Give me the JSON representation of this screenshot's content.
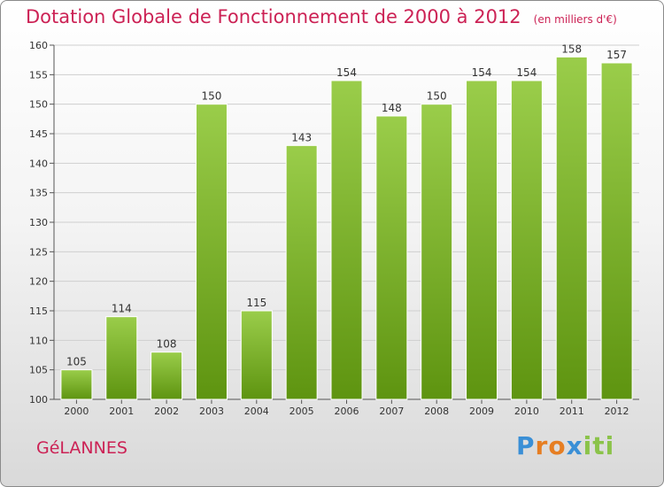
{
  "title": "Dotation Globale de Fonctionnement de 2000 à 2012",
  "subtitle": "(en milliers d'€)",
  "commune": "GéLANNES",
  "logo": {
    "letters": [
      "P",
      "r",
      "o",
      "x",
      "i",
      "t",
      "i"
    ],
    "colors": [
      "#3a8fd6",
      "#e67e22",
      "#e67e22",
      "#3a8fd6",
      "#8bc34a",
      "#8bc34a",
      "#8bc34a"
    ]
  },
  "colors": {
    "title": "#cc2255",
    "bar_top": "#9acd4a",
    "bar_bottom": "#5e9410",
    "axis": "#555555",
    "grid": "#cfcfcf"
  },
  "chart_data": {
    "type": "bar",
    "categories": [
      "2000",
      "2001",
      "2002",
      "2003",
      "2004",
      "2005",
      "2006",
      "2007",
      "2008",
      "2009",
      "2010",
      "2011",
      "2012"
    ],
    "values": [
      105,
      114,
      108,
      150,
      115,
      143,
      154,
      148,
      150,
      154,
      154,
      158,
      157
    ],
    "ylim": [
      100,
      160
    ],
    "yticks": [
      100,
      105,
      110,
      115,
      120,
      125,
      130,
      135,
      140,
      145,
      150,
      155,
      160
    ],
    "grid": true,
    "data_labels": true
  }
}
